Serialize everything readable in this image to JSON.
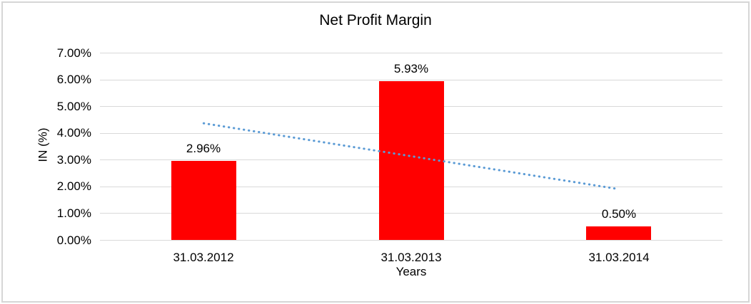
{
  "title": "Net Profit Margin",
  "colors": {
    "bar": "#ff0000",
    "trendline": "#5b9bd5",
    "gridline": "#d9d9d9",
    "text": "#000000",
    "frame_border": "#d6d6d6",
    "background": "#ffffff"
  },
  "chart_data": {
    "type": "bar",
    "title": "Net Profit Margin",
    "xlabel": "Years",
    "ylabel": "IN (%)",
    "categories": [
      "31.03.2012",
      "31.03.2013",
      "31.03.2014"
    ],
    "values": [
      2.96,
      5.93,
      0.5
    ],
    "value_labels": [
      "2.96%",
      "5.93%",
      "0.50%"
    ],
    "ylim": [
      0,
      7
    ],
    "ytick_step": 1,
    "ytick_labels": [
      "0.00%",
      "1.00%",
      "2.00%",
      "3.00%",
      "4.00%",
      "5.00%",
      "6.00%",
      "7.00%"
    ],
    "grid": true,
    "legend_position": "none",
    "trendline": {
      "type": "linear",
      "style": "dotted",
      "values": [
        4.36,
        3.13,
        1.9
      ]
    }
  }
}
